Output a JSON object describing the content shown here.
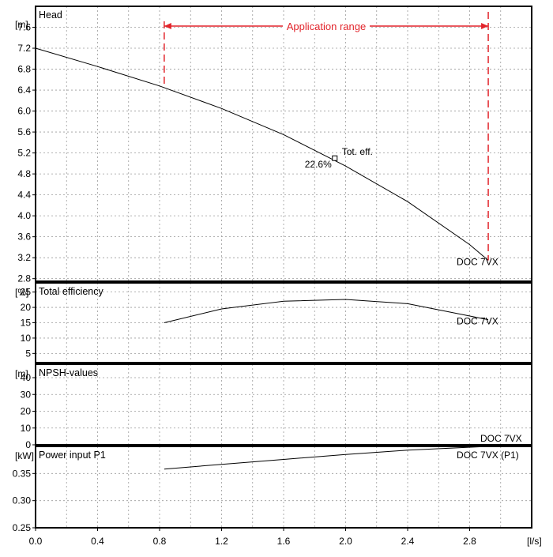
{
  "chart_data": {
    "type": "line",
    "x_axis": {
      "unit": "[l/s]",
      "ticks": [
        "0.0",
        "0.4",
        "0.8",
        "1.2",
        "1.6",
        "2.0",
        "2.4",
        "2.8"
      ],
      "range": [
        0,
        3.2
      ]
    },
    "application_range": {
      "label": "Application range",
      "x": [
        0.83,
        2.92
      ],
      "color": "#e2242b"
    },
    "panels": [
      {
        "title": "Head",
        "unit": "[m]",
        "ylim": [
          2.75,
          8.0
        ],
        "ticks": [
          "2.8",
          "3.2",
          "3.6",
          "4.0",
          "4.4",
          "4.8",
          "5.2",
          "5.6",
          "6.0",
          "6.4",
          "6.8",
          "7.2",
          "7.6"
        ],
        "series": [
          {
            "name": "DOC 7VX",
            "x": [
              0.0,
              0.4,
              0.8,
              1.2,
              1.6,
              2.0,
              2.4,
              2.8,
              2.92
            ],
            "y": [
              7.2,
              6.85,
              6.48,
              6.05,
              5.55,
              4.95,
              4.27,
              3.45,
              3.15
            ]
          }
        ],
        "annotation": {
          "label": "Tot. eff.",
          "value": "22.6%",
          "x": 1.93,
          "y": 5.1
        }
      },
      {
        "title": "Total efficiency",
        "unit": "[%]",
        "ylim": [
          2,
          28
        ],
        "ticks": [
          "5",
          "10",
          "15",
          "20",
          "25"
        ],
        "series": [
          {
            "name": "DOC 7VX",
            "x": [
              0.83,
              1.2,
              1.6,
              2.0,
              2.4,
              2.92
            ],
            "y": [
              15,
              19.5,
              22,
              22.6,
              21.2,
              16
            ]
          }
        ]
      },
      {
        "title": "NPSH-values",
        "unit": "[m]",
        "ylim": [
          0,
          48
        ],
        "ticks": [
          "0",
          "10",
          "20",
          "30",
          "40"
        ],
        "series": [
          {
            "name": "DOC 7VX",
            "x": [],
            "y": []
          }
        ]
      },
      {
        "title": "Power input P1",
        "unit": "[kW]",
        "ylim": [
          0.25,
          0.4
        ],
        "ticks": [
          "0.25",
          "0.30",
          "0.35"
        ],
        "series": [
          {
            "name": "DOC 7VX (P1)",
            "x": [
              0.83,
              1.2,
              1.6,
              2.0,
              2.4,
              2.92
            ],
            "y": [
              0.358,
              0.367,
              0.376,
              0.385,
              0.393,
              0.4
            ]
          }
        ]
      }
    ],
    "grid": true
  }
}
